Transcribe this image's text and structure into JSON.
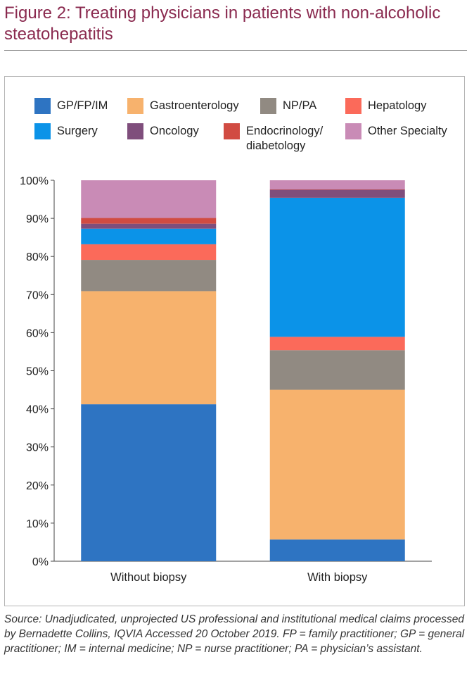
{
  "figure": {
    "title": "Figure 2: Treating physicians in patients with non-alcoholic steatohepatitis",
    "source": "Source: Unadjudicated, unprojected US professional and institutional medical claims processed by Bernadette Collins, IQVIA Accessed 20 October 2019. FP = family practitioner; GP = general practitioner; IM = internal medicine; NP = nurse practitioner; PA = physician’s assistant."
  },
  "chart_data": {
    "type": "bar",
    "stacked": true,
    "categories": [
      "Without biopsy",
      "With biopsy"
    ],
    "ylim": [
      0,
      100
    ],
    "yticks": [
      "0%",
      "10%",
      "20%",
      "30%",
      "40%",
      "50%",
      "60%",
      "70%",
      "80%",
      "90%",
      "100%"
    ],
    "grid": false,
    "legend_position": "top",
    "series": [
      {
        "name": "GP/FP/IM",
        "color": "#2e74c2",
        "values": [
          41.2,
          5.7
        ]
      },
      {
        "name": "Gastroenterology",
        "color": "#f7b26d",
        "values": [
          29.7,
          39.3
        ]
      },
      {
        "name": "NP/PA",
        "color": "#918a82",
        "values": [
          8.2,
          10.4
        ]
      },
      {
        "name": "Hepatology",
        "color": "#fb6a5a",
        "values": [
          4.1,
          3.5
        ]
      },
      {
        "name": "Surgery",
        "color": "#0b93e8",
        "values": [
          4.1,
          36.5
        ]
      },
      {
        "name": "Oncology",
        "color": "#7f4e7c",
        "values": [
          1.3,
          2.1
        ]
      },
      {
        "name": "Endocrinology/ diabetology",
        "color": "#d14b42",
        "values": [
          1.5,
          0.1
        ]
      },
      {
        "name": "Other Specialty",
        "color": "#c98bb6",
        "values": [
          9.9,
          2.4
        ]
      }
    ]
  }
}
